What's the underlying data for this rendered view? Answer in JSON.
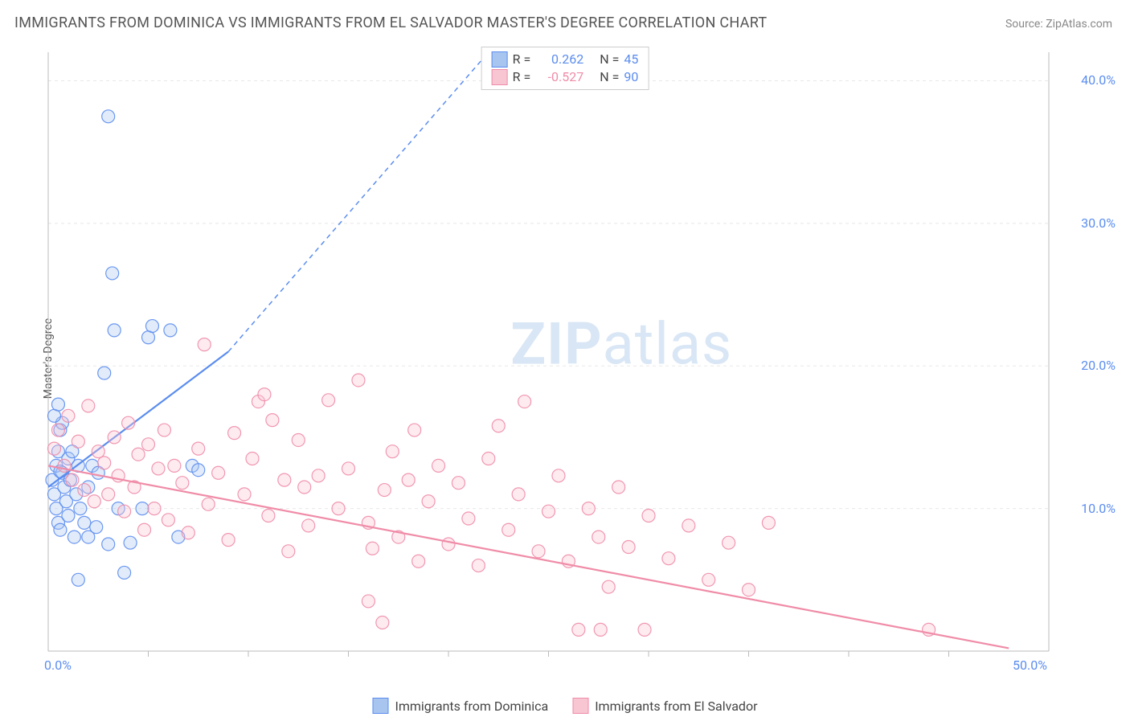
{
  "title": "IMMIGRANTS FROM DOMINICA VS IMMIGRANTS FROM EL SALVADOR MASTER'S DEGREE CORRELATION CHART",
  "source": "Source: ZipAtlas.com",
  "watermark_text_bold": "ZIP",
  "watermark_text_rest": "atlas",
  "y_axis_label": "Master's Degree",
  "chart": {
    "type": "scatter",
    "xlim": [
      0,
      50
    ],
    "ylim": [
      0,
      42
    ],
    "background_color": "#ffffff",
    "grid_color": "#e8e8e8",
    "axis_color": "#bbbbbb",
    "tick_label_color": "#5b8def",
    "x_ticks": [
      0,
      50
    ],
    "x_tick_labels": [
      "0.0%",
      "50.0%"
    ],
    "x_minor_ticks": [
      5,
      10,
      15,
      20,
      25,
      30,
      35,
      40,
      45
    ],
    "y_ticks": [
      10,
      20,
      30,
      40
    ],
    "y_tick_labels": [
      "10.0%",
      "20.0%",
      "30.0%",
      "40.0%"
    ],
    "marker_radius": 8,
    "marker_fill_opacity": 0.35,
    "marker_stroke_opacity": 0.9,
    "series": [
      {
        "name": "Immigrants from Dominica",
        "color_stroke": "#5b8def",
        "color_fill": "#a8c5f0",
        "R": 0.262,
        "N": 45,
        "regression": {
          "x1": 0,
          "y1": 11.5,
          "x2": 9,
          "y2": 21,
          "extend_to_x": 22,
          "extend_to_y": 42,
          "dash_from_x": 9
        },
        "points": [
          [
            0.2,
            12
          ],
          [
            0.3,
            11
          ],
          [
            0.4,
            13
          ],
          [
            0.4,
            10
          ],
          [
            0.5,
            14
          ],
          [
            0.5,
            9
          ],
          [
            0.6,
            15.5
          ],
          [
            0.6,
            8.5
          ],
          [
            0.7,
            16
          ],
          [
            0.7,
            12.5
          ],
          [
            0.8,
            11.5
          ],
          [
            0.9,
            10.5
          ],
          [
            1.0,
            13.5
          ],
          [
            1.0,
            9.5
          ],
          [
            1.1,
            12
          ],
          [
            1.2,
            14
          ],
          [
            1.3,
            8
          ],
          [
            1.4,
            11
          ],
          [
            1.5,
            13
          ],
          [
            1.6,
            10
          ],
          [
            1.8,
            9
          ],
          [
            2.0,
            11.5
          ],
          [
            2.0,
            8
          ],
          [
            2.2,
            13
          ],
          [
            2.5,
            12.5
          ],
          [
            2.8,
            19.5
          ],
          [
            3.0,
            7.5
          ],
          [
            3.2,
            26.5
          ],
          [
            3.3,
            22.5
          ],
          [
            3.5,
            10
          ],
          [
            3.8,
            5.5
          ],
          [
            3.0,
            37.5
          ],
          [
            1.5,
            5
          ],
          [
            4.7,
            10
          ],
          [
            5.0,
            22
          ],
          [
            5.2,
            22.8
          ],
          [
            6.1,
            22.5
          ],
          [
            6.5,
            8
          ],
          [
            7.2,
            13
          ],
          [
            7.5,
            12.7
          ],
          [
            4.1,
            7.6
          ],
          [
            0.3,
            16.5
          ],
          [
            0.5,
            17.3
          ],
          [
            2.4,
            8.7
          ],
          [
            0.6,
            12.6
          ]
        ]
      },
      {
        "name": "Immigrants from El Salvador",
        "color_stroke": "#f08ca8",
        "color_fill": "#f8c5d3",
        "R": -0.527,
        "N": 90,
        "regression": {
          "x1": 0,
          "y1": 13,
          "x2": 48,
          "y2": 0.2
        },
        "points": [
          [
            0.3,
            14.2
          ],
          [
            0.5,
            15.5
          ],
          [
            0.8,
            13
          ],
          [
            1.0,
            16.5
          ],
          [
            1.2,
            12
          ],
          [
            1.5,
            14.7
          ],
          [
            1.8,
            11.3
          ],
          [
            2.0,
            17.2
          ],
          [
            2.3,
            10.5
          ],
          [
            2.5,
            14
          ],
          [
            2.8,
            13.2
          ],
          [
            3.0,
            11
          ],
          [
            3.3,
            15
          ],
          [
            3.5,
            12.3
          ],
          [
            3.8,
            9.8
          ],
          [
            4.0,
            16
          ],
          [
            4.3,
            11.5
          ],
          [
            4.5,
            13.8
          ],
          [
            4.8,
            8.5
          ],
          [
            5.0,
            14.5
          ],
          [
            5.3,
            10
          ],
          [
            5.5,
            12.8
          ],
          [
            5.8,
            15.5
          ],
          [
            6.0,
            9.2
          ],
          [
            6.3,
            13
          ],
          [
            6.7,
            11.8
          ],
          [
            7.0,
            8.3
          ],
          [
            7.5,
            14.2
          ],
          [
            7.8,
            21.5
          ],
          [
            8.0,
            10.3
          ],
          [
            8.5,
            12.5
          ],
          [
            9.0,
            7.8
          ],
          [
            9.3,
            15.3
          ],
          [
            9.8,
            11
          ],
          [
            10.2,
            13.5
          ],
          [
            10.5,
            17.5
          ],
          [
            10.8,
            18
          ],
          [
            11.0,
            9.5
          ],
          [
            11.2,
            16.2
          ],
          [
            11.8,
            12
          ],
          [
            12.0,
            7
          ],
          [
            12.5,
            14.8
          ],
          [
            12.8,
            11.5
          ],
          [
            13.0,
            8.8
          ],
          [
            13.5,
            12.3
          ],
          [
            14.0,
            17.6
          ],
          [
            14.5,
            10
          ],
          [
            15.0,
            12.8
          ],
          [
            15.5,
            19
          ],
          [
            16.0,
            9
          ],
          [
            16.2,
            7.2
          ],
          [
            16.8,
            11.3
          ],
          [
            17.2,
            14
          ],
          [
            17.5,
            8
          ],
          [
            18.0,
            12
          ],
          [
            18.3,
            15.5
          ],
          [
            18.5,
            6.3
          ],
          [
            19.0,
            10.5
          ],
          [
            19.5,
            13
          ],
          [
            20.0,
            7.5
          ],
          [
            20.5,
            11.8
          ],
          [
            21.0,
            9.3
          ],
          [
            21.5,
            6
          ],
          [
            22.0,
            13.5
          ],
          [
            22.5,
            15.8
          ],
          [
            23.0,
            8.5
          ],
          [
            23.5,
            11
          ],
          [
            23.8,
            17.5
          ],
          [
            24.5,
            7
          ],
          [
            25.0,
            9.8
          ],
          [
            25.5,
            12.3
          ],
          [
            26.0,
            6.3
          ],
          [
            27.0,
            10
          ],
          [
            27.5,
            8
          ],
          [
            28.0,
            4.5
          ],
          [
            28.5,
            11.5
          ],
          [
            29.0,
            7.3
          ],
          [
            30.0,
            9.5
          ],
          [
            31.0,
            6.5
          ],
          [
            32.0,
            8.8
          ],
          [
            33.0,
            5
          ],
          [
            34.0,
            7.6
          ],
          [
            35.0,
            4.3
          ],
          [
            36.0,
            9
          ],
          [
            26.5,
            1.5
          ],
          [
            27.6,
            1.5
          ],
          [
            29.8,
            1.5
          ],
          [
            16.7,
            2
          ],
          [
            16.0,
            3.5
          ],
          [
            44.0,
            1.5
          ]
        ]
      }
    ]
  },
  "legend_top": {
    "rows": [
      {
        "swatch_fill": "#a8c5f0",
        "swatch_stroke": "#5b8def",
        "r_label": "R =",
        "r_value": "0.262",
        "r_color": "#5b8def",
        "n_label": "N =",
        "n_value": "45",
        "n_color": "#5b8def"
      },
      {
        "swatch_fill": "#f8c5d3",
        "swatch_stroke": "#f08ca8",
        "r_label": "R =",
        "r_value": "-0.527",
        "r_color": "#f08ca8",
        "n_label": "N =",
        "n_value": "90",
        "n_color": "#5b8def"
      }
    ]
  },
  "legend_bottom": {
    "items": [
      {
        "swatch_fill": "#a8c5f0",
        "swatch_stroke": "#5b8def",
        "label": "Immigrants from Dominica"
      },
      {
        "swatch_fill": "#f8c5d3",
        "swatch_stroke": "#f08ca8",
        "label": "Immigrants from El Salvador"
      }
    ]
  }
}
